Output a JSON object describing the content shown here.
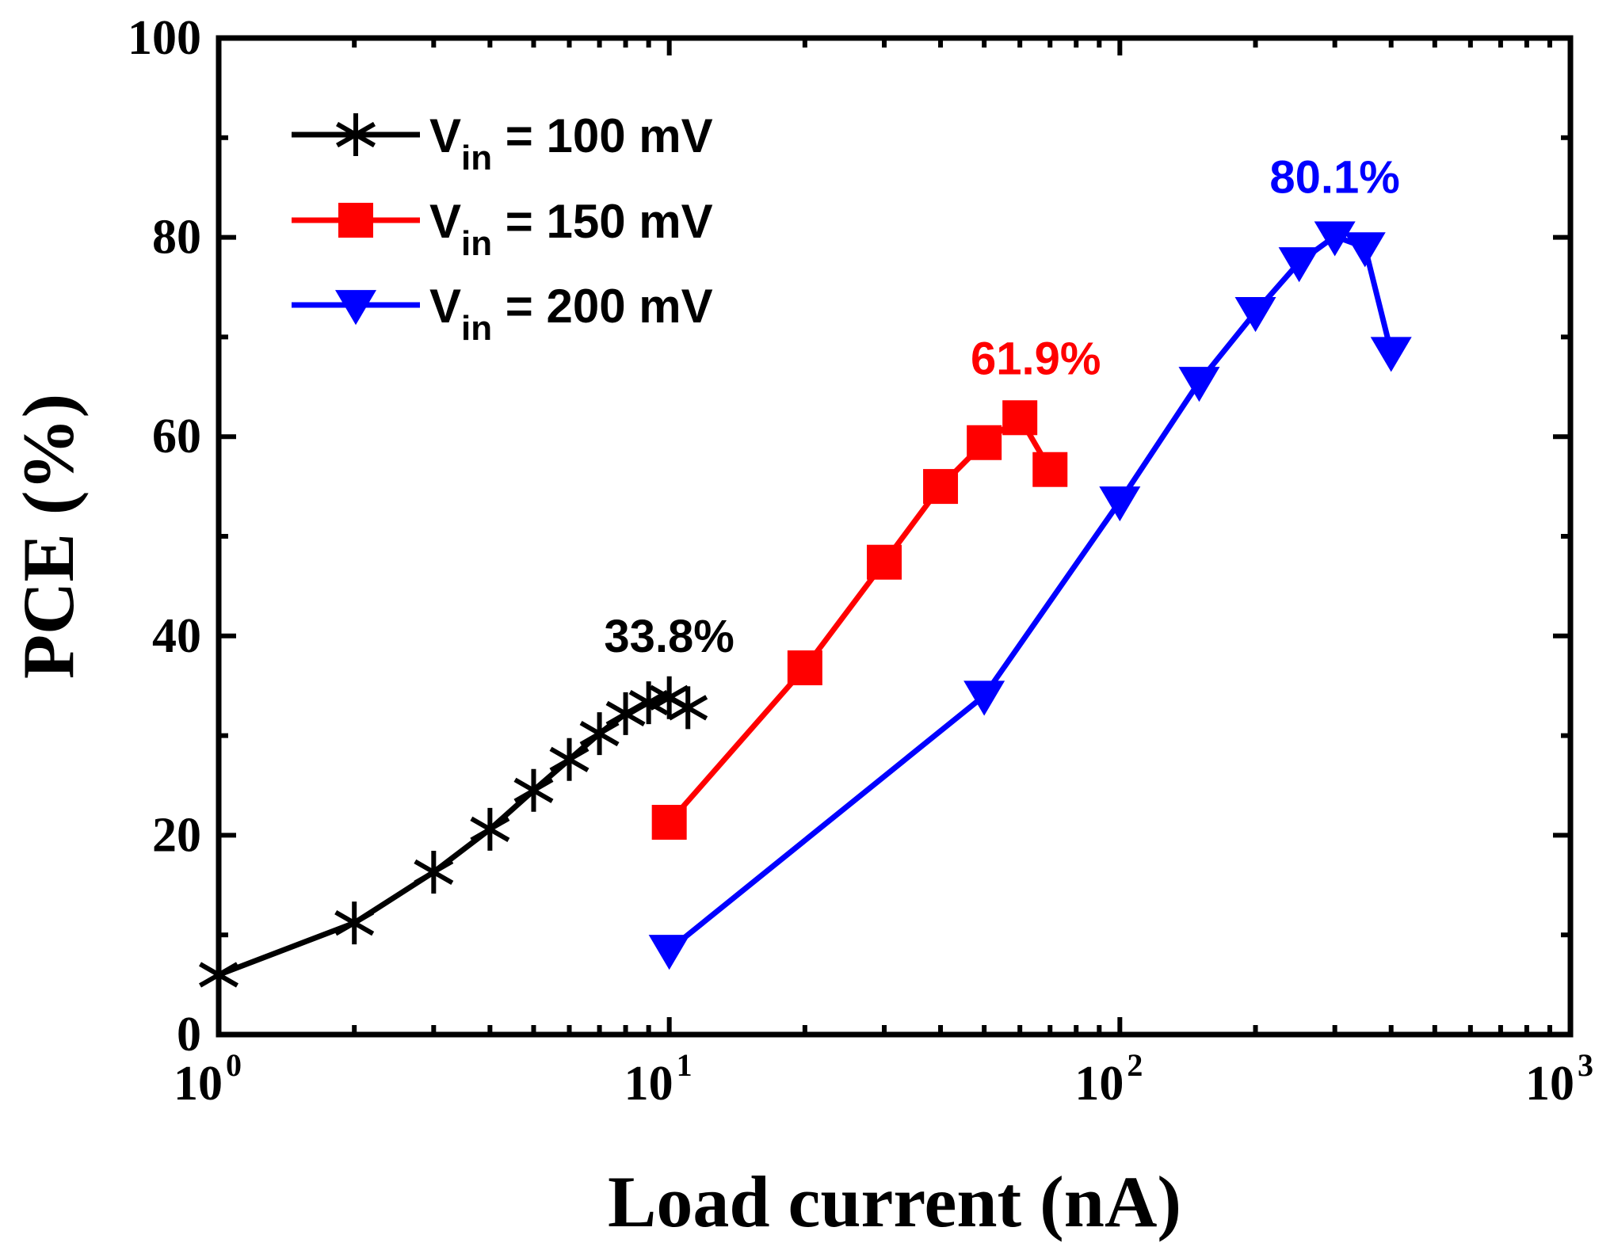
{
  "chart_data": {
    "type": "line",
    "title": "",
    "xlabel": "Load current (nA)",
    "ylabel": "PCE (%)",
    "xscale": "log",
    "xlim": [
      1,
      1000
    ],
    "ylim": [
      0,
      100
    ],
    "grid": false,
    "x_ticks": [
      {
        "base": "10",
        "exp": "0",
        "value": 1
      },
      {
        "base": "10",
        "exp": "1",
        "value": 10
      },
      {
        "base": "10",
        "exp": "2",
        "value": 100
      },
      {
        "base": "10",
        "exp": "3",
        "value": 1000
      }
    ],
    "y_ticks": [
      "0",
      "20",
      "40",
      "60",
      "80",
      "100"
    ],
    "legend_position": "top-left",
    "series": [
      {
        "name": "V_in = 100 mV",
        "legend_prefix": "V",
        "legend_sub": "in",
        "legend_suffix": " = 100 mV",
        "color": "#000000",
        "marker": "asterisk",
        "x": [
          1,
          2,
          3,
          4,
          5,
          6,
          7,
          8,
          9,
          10,
          11
        ],
        "y": [
          6.0,
          11.2,
          16.3,
          20.6,
          24.5,
          27.6,
          30.2,
          32.2,
          33.3,
          33.8,
          32.8
        ]
      },
      {
        "name": "V_in = 150 mV",
        "legend_prefix": "V",
        "legend_sub": "in",
        "legend_suffix": " = 150 mV",
        "color": "#ff0000",
        "marker": "square",
        "x": [
          10,
          20,
          30,
          40,
          50,
          60,
          70
        ],
        "y": [
          21.3,
          36.8,
          47.4,
          55.0,
          59.4,
          61.9,
          56.7
        ]
      },
      {
        "name": "V_in = 200 mV",
        "legend_prefix": "V",
        "legend_sub": "in",
        "legend_suffix": " = 200 mV",
        "color": "#0000ff",
        "marker": "triangle-down",
        "x": [
          10,
          50,
          100,
          150,
          200,
          250,
          300,
          350,
          400
        ],
        "y": [
          8.5,
          34.0,
          53.5,
          65.5,
          72.5,
          77.5,
          80.1,
          79.0,
          68.5
        ]
      }
    ],
    "annotations": [
      {
        "text": "33.8%",
        "color": "#000000"
      },
      {
        "text": "61.9%",
        "color": "#ff0000"
      },
      {
        "text": "80.1%",
        "color": "#0000ff"
      }
    ]
  }
}
